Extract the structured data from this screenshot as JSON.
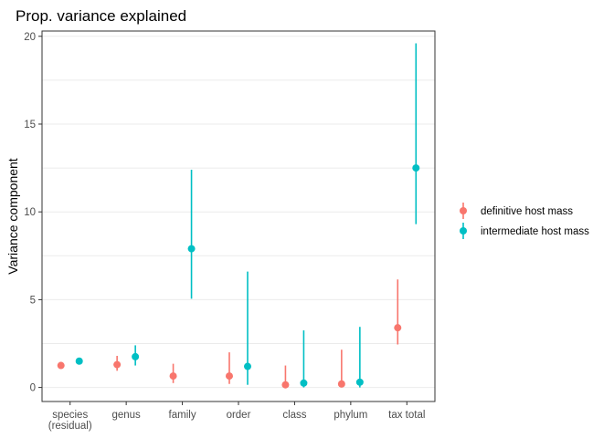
{
  "chart_data": {
    "type": "scatter",
    "title": "Prop. variance explained",
    "xlabel": "",
    "ylabel": "Variance component",
    "ylim": [
      -0.8,
      20.3
    ],
    "yticks": [
      0,
      5,
      10,
      15,
      20
    ],
    "grid": "horizontal",
    "legend_position": "right",
    "categories": [
      {
        "lines": [
          "species",
          "(residual)"
        ]
      },
      {
        "lines": [
          "genus"
        ]
      },
      {
        "lines": [
          "family"
        ]
      },
      {
        "lines": [
          "order"
        ]
      },
      {
        "lines": [
          "class"
        ]
      },
      {
        "lines": [
          "phylum"
        ]
      },
      {
        "lines": [
          "tax total"
        ]
      }
    ],
    "series": [
      {
        "name": "definitive host mass",
        "color": "#F8766D",
        "values": [
          1.25,
          1.3,
          0.65,
          0.65,
          0.15,
          0.2,
          3.4
        ],
        "lower": [
          1.1,
          0.95,
          0.25,
          0.2,
          0.0,
          0.0,
          2.45
        ],
        "upper": [
          1.45,
          1.8,
          1.35,
          2.0,
          1.25,
          2.15,
          6.15
        ]
      },
      {
        "name": "intermediate host mass",
        "color": "#00BFC4",
        "values": [
          1.5,
          1.75,
          7.9,
          1.2,
          0.25,
          0.3,
          12.5
        ],
        "lower": [
          1.35,
          1.25,
          5.05,
          0.15,
          0.0,
          0.0,
          9.3
        ],
        "upper": [
          1.65,
          2.4,
          12.4,
          6.6,
          3.25,
          3.45,
          19.6
        ]
      }
    ]
  }
}
